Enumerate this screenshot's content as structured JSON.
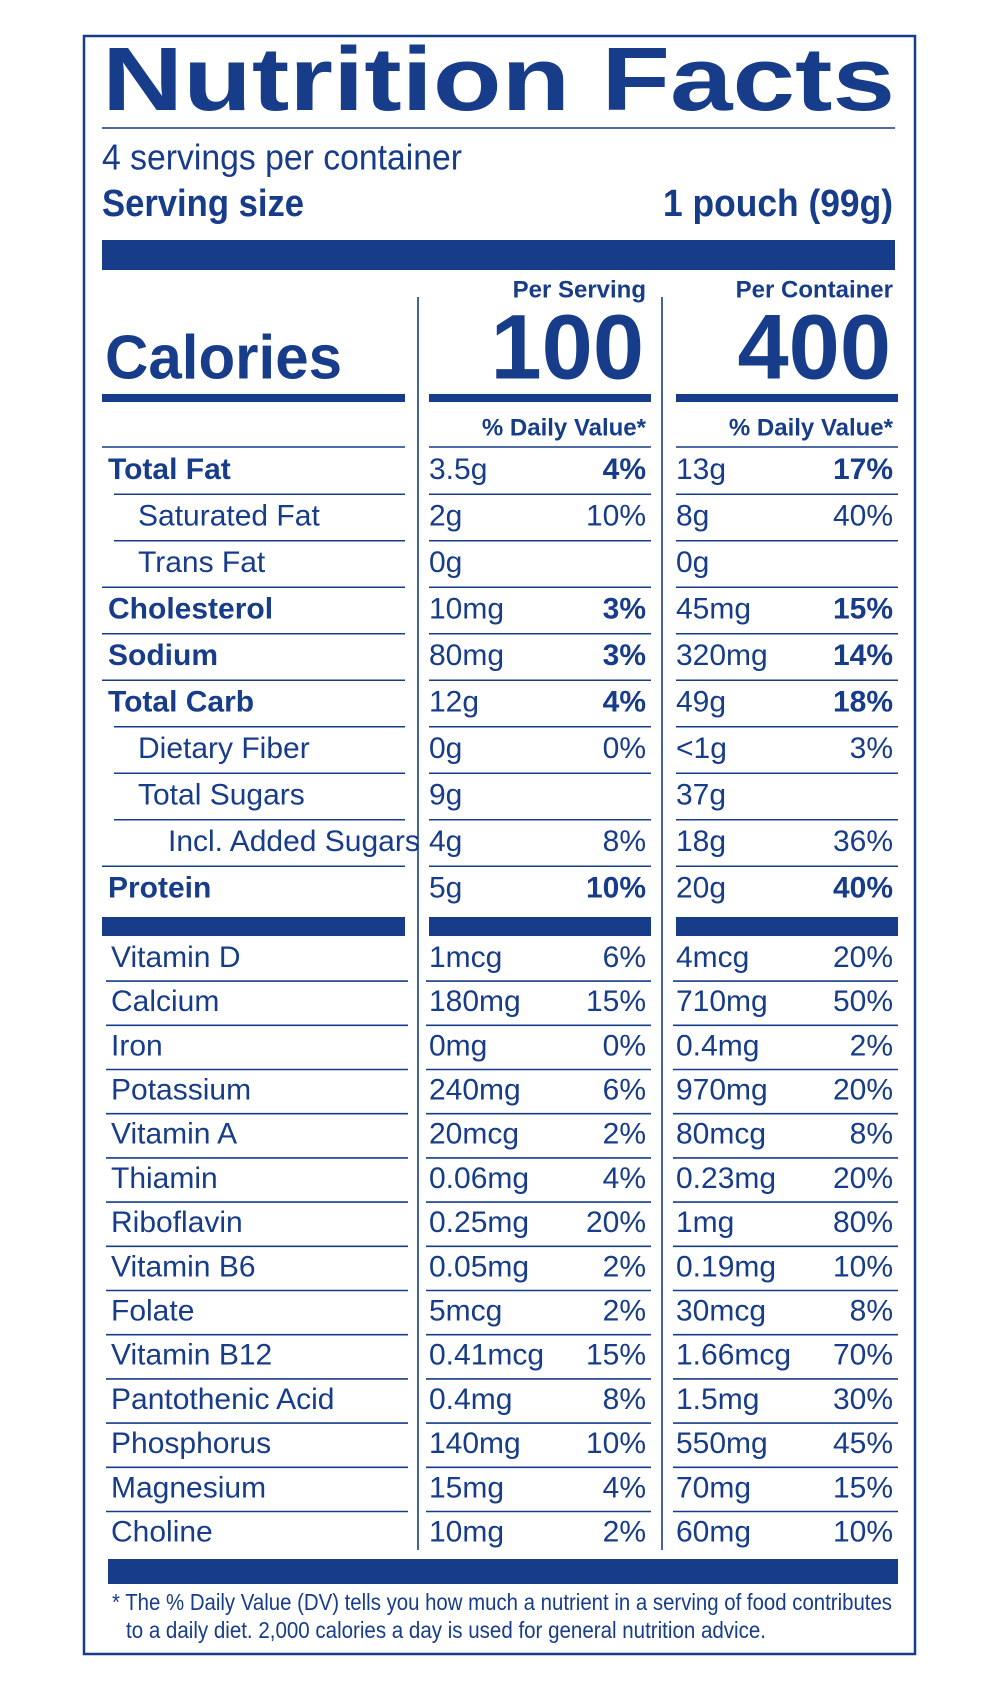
{
  "header": {
    "title": "Nutrition Facts",
    "servings": "4 servings per container",
    "serving_size_label": "Serving size",
    "serving_size": "1 pouch (99g)"
  },
  "calories_label": "Calories",
  "columns": [
    {
      "heading": "Per Serving",
      "calories": 100,
      "daily_value": "% Daily Value*"
    },
    {
      "heading": "Per Container",
      "calories": 400,
      "daily_value": "% Daily Value*"
    }
  ],
  "nutrients": [
    {
      "name": "Total Fat",
      "amounts": [
        "3.5g",
        "13g"
      ],
      "dv": [
        "4%",
        "17%"
      ],
      "sub": [
        {
          "name": "Saturated Fat",
          "amounts": [
            "2g",
            "8g"
          ],
          "dv": [
            "10%",
            "40%"
          ]
        },
        {
          "name": "Trans Fat",
          "amounts": [
            "0g",
            "0g"
          ]
        }
      ]
    },
    {
      "name": "Cholesterol",
      "amounts": [
        "10mg",
        "45mg"
      ],
      "dv": [
        "3%",
        "15%"
      ]
    },
    {
      "name": "Sodium",
      "amounts": [
        "80mg",
        "320mg"
      ],
      "dv": [
        "3%",
        "14%"
      ]
    },
    {
      "name": "Total Carb",
      "amounts": [
        "12g",
        "49g"
      ],
      "dv": [
        "4%",
        "18%"
      ],
      "sub": [
        {
          "name": "Dietary Fiber",
          "amounts": [
            "0g",
            "<1g"
          ],
          "dv": [
            "0%",
            "3%"
          ]
        },
        {
          "name": "Total Sugars",
          "amounts": [
            "9g",
            "37g"
          ],
          "sub": [
            {
              "name": "Incl. Added Sugars",
              "amounts": [
                "4g",
                "18g"
              ],
              "dv": [
                "8%",
                "36%"
              ]
            }
          ]
        }
      ]
    },
    {
      "name": "Protein",
      "amounts": [
        "5g",
        "20g"
      ],
      "dv": [
        "10%",
        "40%"
      ]
    }
  ],
  "vitamins": [
    {
      "name": "Vitamin D",
      "amounts": [
        "1mcg",
        "4mcg"
      ],
      "dv": [
        "6%",
        "20%"
      ]
    },
    {
      "name": "Calcium",
      "amounts": [
        "180mg",
        "710mg"
      ],
      "dv": [
        "15%",
        "50%"
      ]
    },
    {
      "name": "Iron",
      "amounts": [
        "0mg",
        "0.4mg"
      ],
      "dv": [
        "0%",
        "2%"
      ]
    },
    {
      "name": "Potassium",
      "amounts": [
        "240mg",
        "970mg"
      ],
      "dv": [
        "6%",
        "20%"
      ]
    },
    {
      "name": "Vitamin A",
      "amounts": [
        "20mcg",
        "80mcg"
      ],
      "dv": [
        "2%",
        "8%"
      ]
    },
    {
      "name": "Thiamin",
      "amounts": [
        "0.06mg",
        "0.23mg"
      ],
      "dv": [
        "4%",
        "20%"
      ]
    },
    {
      "name": "Riboflavin",
      "amounts": [
        "0.25mg",
        "1mg"
      ],
      "dv": [
        "20%",
        "80%"
      ]
    },
    {
      "name": "Vitamin B6",
      "amounts": [
        "0.05mg",
        "0.19mg"
      ],
      "dv": [
        "2%",
        "10%"
      ]
    },
    {
      "name": "Folate",
      "amounts": [
        "5mcg",
        "30mcg"
      ],
      "dv": [
        "2%",
        "8%"
      ]
    },
    {
      "name": "Vitamin B12",
      "amounts": [
        "0.41mcg",
        "1.66mcg"
      ],
      "dv": [
        "15%",
        "70%"
      ]
    },
    {
      "name": "Pantothenic Acid",
      "amounts": [
        "0.4mg",
        "1.5mg"
      ],
      "dv": [
        "8%",
        "30%"
      ]
    },
    {
      "name": "Phosphorus",
      "amounts": [
        "140mg",
        "550mg"
      ],
      "dv": [
        "10%",
        "45%"
      ]
    },
    {
      "name": "Magnesium",
      "amounts": [
        "15mg",
        "70mg"
      ],
      "dv": [
        "4%",
        "15%"
      ]
    },
    {
      "name": "Choline",
      "amounts": [
        "10mg",
        "60mg"
      ],
      "dv": [
        "2%",
        "10%"
      ]
    }
  ],
  "footnote": [
    "* The % Daily Value (DV) tells you how much a nutrient in a serving of food contributes",
    "to a daily diet. 2,000 calories a day is used for general nutrition advice."
  ]
}
